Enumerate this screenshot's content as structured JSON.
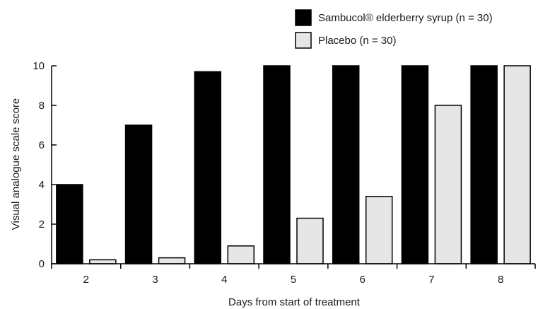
{
  "chart_data": {
    "type": "bar",
    "categories": [
      "2",
      "3",
      "4",
      "5",
      "6",
      "7",
      "8"
    ],
    "series": [
      {
        "name": "Sambucol® elderberry syrup (n = 30)",
        "values": [
          4.0,
          7.0,
          9.7,
          10.0,
          10.0,
          10.0,
          10.0
        ],
        "color": "#000000"
      },
      {
        "name": "Placebo (n = 30)",
        "values": [
          0.2,
          0.3,
          0.9,
          2.3,
          3.4,
          8.0,
          10.0
        ],
        "color": "#e6e6e6"
      }
    ],
    "xlabel": "Days from start of treatment",
    "ylabel": "Visual analogue scale score",
    "ylim": [
      0,
      10
    ],
    "yticks": [
      "0",
      "2",
      "4",
      "6",
      "8",
      "10"
    ],
    "legend": "top-right",
    "grid": false
  }
}
